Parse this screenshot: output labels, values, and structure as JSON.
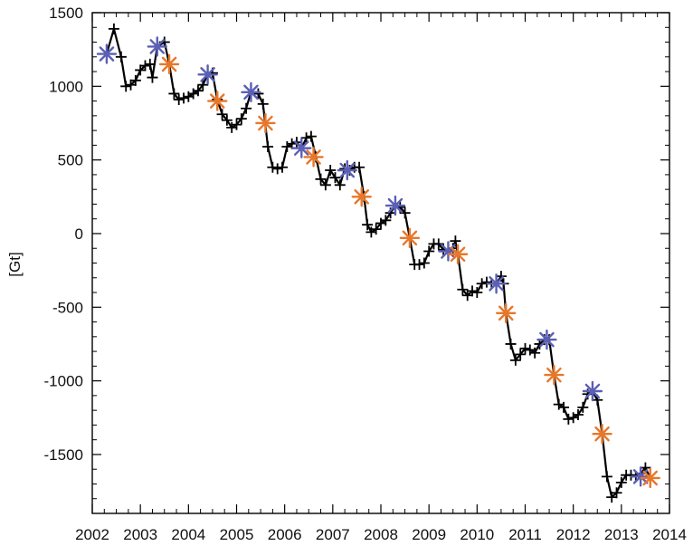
{
  "chart_data": {
    "type": "line",
    "title": "",
    "xlabel": "",
    "ylabel": "[Gt]",
    "xlim": [
      2002,
      2014
    ],
    "ylim": [
      -1900,
      1500
    ],
    "xticks": [
      2002,
      2003,
      2004,
      2005,
      2006,
      2007,
      2008,
      2009,
      2010,
      2011,
      2012,
      2013,
      2014
    ],
    "yticks": [
      1500,
      1000,
      500,
      0,
      -500,
      -1000,
      -1500
    ],
    "grid": false,
    "series": [
      {
        "marker": "plus",
        "color": "#000000",
        "points": [
          [
            2002.3,
            1220
          ],
          [
            2002.45,
            1390
          ],
          [
            2002.6,
            1200
          ],
          [
            2002.7,
            1000
          ],
          [
            2002.8,
            1010
          ],
          [
            2002.9,
            1040
          ],
          [
            2003.0,
            1110
          ],
          [
            2003.1,
            1140
          ],
          [
            2003.2,
            1150
          ],
          [
            2003.25,
            1060
          ],
          [
            2003.35,
            1270
          ],
          [
            2003.5,
            1300
          ],
          [
            2003.6,
            1150
          ],
          [
            2003.7,
            950
          ],
          [
            2003.8,
            910
          ],
          [
            2003.9,
            920
          ],
          [
            2004.0,
            930
          ],
          [
            2004.1,
            950
          ],
          [
            2004.2,
            970
          ],
          [
            2004.3,
            1010
          ],
          [
            2004.4,
            1080
          ],
          [
            2004.5,
            1090
          ],
          [
            2004.6,
            910
          ],
          [
            2004.7,
            810
          ],
          [
            2004.8,
            770
          ],
          [
            2004.9,
            720
          ],
          [
            2005.0,
            740
          ],
          [
            2005.1,
            780
          ],
          [
            2005.2,
            850
          ],
          [
            2005.3,
            960
          ],
          [
            2005.45,
            950
          ],
          [
            2005.55,
            880
          ],
          [
            2005.65,
            590
          ],
          [
            2005.75,
            450
          ],
          [
            2005.85,
            440
          ],
          [
            2005.95,
            450
          ],
          [
            2006.05,
            590
          ],
          [
            2006.15,
            610
          ],
          [
            2006.25,
            620
          ],
          [
            2006.35,
            580
          ],
          [
            2006.45,
            650
          ],
          [
            2006.55,
            660
          ],
          [
            2006.65,
            520
          ],
          [
            2006.75,
            370
          ],
          [
            2006.85,
            330
          ],
          [
            2006.95,
            430
          ],
          [
            2007.05,
            380
          ],
          [
            2007.15,
            330
          ],
          [
            2007.25,
            440
          ],
          [
            2007.35,
            430
          ],
          [
            2007.45,
            450
          ],
          [
            2007.55,
            450
          ],
          [
            2007.65,
            250
          ],
          [
            2007.72,
            60
          ],
          [
            2007.8,
            10
          ],
          [
            2007.9,
            30
          ],
          [
            2008.0,
            70
          ],
          [
            2008.1,
            90
          ],
          [
            2008.2,
            140
          ],
          [
            2008.3,
            190
          ],
          [
            2008.4,
            180
          ],
          [
            2008.5,
            140
          ],
          [
            2008.6,
            -30
          ],
          [
            2008.7,
            -210
          ],
          [
            2008.8,
            -210
          ],
          [
            2008.9,
            -200
          ],
          [
            2009.0,
            -120
          ],
          [
            2009.1,
            -70
          ],
          [
            2009.2,
            -70
          ],
          [
            2009.3,
            -110
          ],
          [
            2009.4,
            -120
          ],
          [
            2009.5,
            -100
          ],
          [
            2009.55,
            -50
          ],
          [
            2009.6,
            -140
          ],
          [
            2009.7,
            -380
          ],
          [
            2009.8,
            -420
          ],
          [
            2009.9,
            -390
          ],
          [
            2010.0,
            -400
          ],
          [
            2010.1,
            -340
          ],
          [
            2010.2,
            -330
          ],
          [
            2010.3,
            -340
          ],
          [
            2010.4,
            -340
          ],
          [
            2010.5,
            -290
          ],
          [
            2010.55,
            -340
          ],
          [
            2010.6,
            -540
          ],
          [
            2010.7,
            -750
          ],
          [
            2010.8,
            -860
          ],
          [
            2010.9,
            -820
          ],
          [
            2011.0,
            -780
          ],
          [
            2011.1,
            -790
          ],
          [
            2011.2,
            -810
          ],
          [
            2011.3,
            -750
          ],
          [
            2011.4,
            -720
          ],
          [
            2011.5,
            -720
          ],
          [
            2011.6,
            -960
          ],
          [
            2011.7,
            -1160
          ],
          [
            2011.8,
            -1180
          ],
          [
            2011.9,
            -1260
          ],
          [
            2012.0,
            -1250
          ],
          [
            2012.1,
            -1230
          ],
          [
            2012.2,
            -1180
          ],
          [
            2012.3,
            -1090
          ],
          [
            2012.4,
            -1070
          ],
          [
            2012.5,
            -1130
          ],
          [
            2012.6,
            -1360
          ],
          [
            2012.7,
            -1650
          ],
          [
            2012.8,
            -1790
          ],
          [
            2012.9,
            -1760
          ],
          [
            2013.0,
            -1690
          ],
          [
            2013.1,
            -1640
          ],
          [
            2013.2,
            -1640
          ],
          [
            2013.3,
            -1650
          ],
          [
            2013.4,
            -1630
          ],
          [
            2013.5,
            -1590
          ],
          [
            2013.6,
            -1660
          ]
        ]
      },
      {
        "marker": "asterisk",
        "color": "#5b5fb5",
        "points": [
          [
            2002.3,
            1220
          ],
          [
            2003.35,
            1270
          ],
          [
            2004.4,
            1080
          ],
          [
            2005.3,
            960
          ],
          [
            2006.35,
            580
          ],
          [
            2007.3,
            430
          ],
          [
            2008.3,
            190
          ],
          [
            2009.4,
            -120
          ],
          [
            2010.4,
            -340
          ],
          [
            2011.45,
            -720
          ],
          [
            2012.4,
            -1070
          ],
          [
            2013.4,
            -1650
          ]
        ]
      },
      {
        "marker": "asterisk",
        "color": "#e8772a",
        "points": [
          [
            2003.6,
            1150
          ],
          [
            2004.6,
            900
          ],
          [
            2005.6,
            750
          ],
          [
            2006.6,
            520
          ],
          [
            2007.6,
            250
          ],
          [
            2008.6,
            -30
          ],
          [
            2009.6,
            -140
          ],
          [
            2010.6,
            -540
          ],
          [
            2011.6,
            -960
          ],
          [
            2012.6,
            -1360
          ],
          [
            2013.6,
            -1660
          ]
        ]
      }
    ]
  }
}
